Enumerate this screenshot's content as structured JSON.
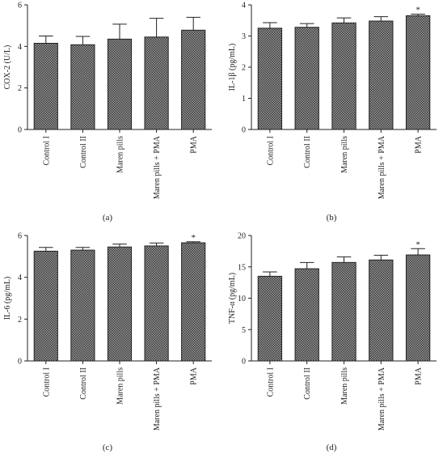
{
  "chart_data": [
    {
      "type": "bar",
      "panel_label": "(a)",
      "ylabel": "COX-2 (U/L)",
      "categories": [
        "Control I",
        "Control II",
        "Maren pills",
        "Maren pills + PMA",
        "PMA"
      ],
      "values": [
        4.15,
        4.08,
        4.35,
        4.45,
        4.78
      ],
      "errors": [
        0.35,
        0.4,
        0.72,
        0.9,
        0.62
      ],
      "significance": [
        "",
        "",
        "",
        "",
        ""
      ],
      "ylim": [
        0,
        6
      ],
      "yticks": [
        "0",
        "2",
        "4",
        "6"
      ],
      "color": "#7a7a7a"
    },
    {
      "type": "bar",
      "panel_label": "(b)",
      "ylabel": "IL-1β (pg/mL)",
      "categories": [
        "Control I",
        "Control II",
        "Maren pills",
        "Maren pills + PMA",
        "PMA"
      ],
      "values": [
        3.25,
        3.28,
        3.42,
        3.48,
        3.65
      ],
      "errors": [
        0.18,
        0.12,
        0.16,
        0.14,
        0.05
      ],
      "significance": [
        "",
        "",
        "",
        "",
        "*"
      ],
      "ylim": [
        0,
        4
      ],
      "yticks": [
        "0",
        "1",
        "2",
        "3",
        "4"
      ],
      "color": "#7a7a7a"
    },
    {
      "type": "bar",
      "panel_label": "(c)",
      "ylabel": "IL-6 (pg/mL)",
      "categories": [
        "Control I",
        "Control II",
        "Maren pills",
        "Maren pills + PMA",
        "PMA"
      ],
      "values": [
        5.25,
        5.3,
        5.45,
        5.5,
        5.65
      ],
      "errors": [
        0.18,
        0.13,
        0.14,
        0.14,
        0.05
      ],
      "significance": [
        "",
        "",
        "",
        "",
        "*"
      ],
      "ylim": [
        0,
        6
      ],
      "yticks": [
        "0",
        "2",
        "4",
        "6"
      ],
      "color": "#7a7a7a"
    },
    {
      "type": "bar",
      "panel_label": "(d)",
      "ylabel": "TNF-α (pg/mL)",
      "categories": [
        "Control I",
        "Control II",
        "Maren pills",
        "Maren pills + PMA",
        "PMA"
      ],
      "values": [
        13.5,
        14.7,
        15.7,
        16.1,
        16.9
      ],
      "errors": [
        0.7,
        1.0,
        0.9,
        0.75,
        1.0
      ],
      "significance": [
        "",
        "",
        "",
        "",
        "*"
      ],
      "ylim": [
        0,
        20
      ],
      "yticks": [
        "0",
        "5",
        "10",
        "15",
        "20"
      ],
      "color": "#7a7a7a"
    }
  ]
}
